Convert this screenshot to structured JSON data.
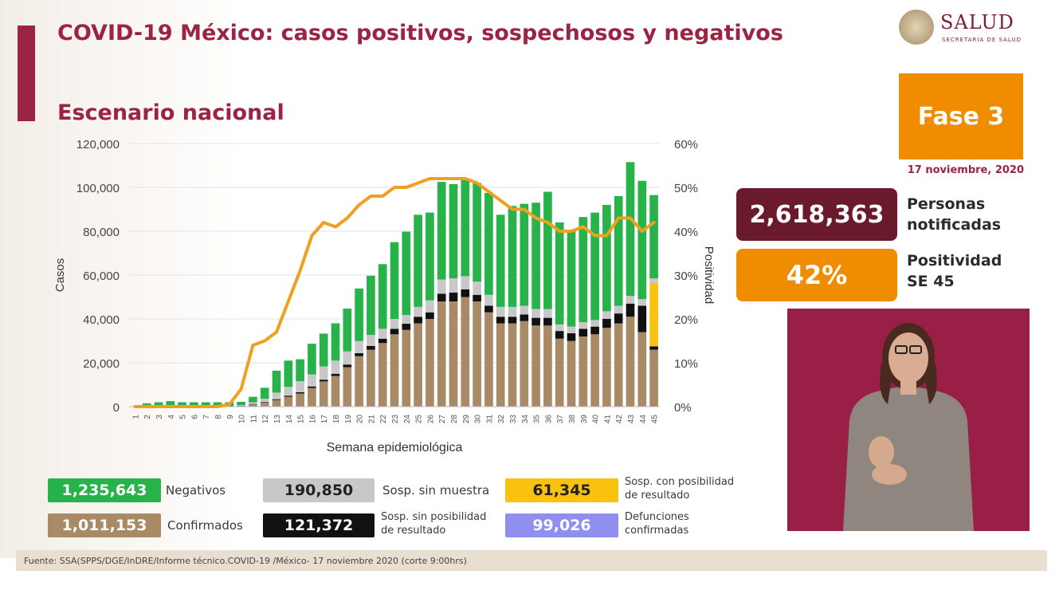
{
  "header": {
    "title": "COVID-19 México: casos positivos, sospechosos y negativos",
    "subtitle": "Escenario nacional"
  },
  "logo": {
    "text": "SALUD",
    "subtext": "SECRETARÍA DE SALUD"
  },
  "fase": {
    "label": "Fase 3",
    "date": "17 noviembre, 2020"
  },
  "stats": {
    "notificadas_value": "2,618,363",
    "notificadas_label": "Personas\nnotificadas",
    "positividad_value": "42%",
    "positividad_label": "Positividad\nSE 45"
  },
  "legend": {
    "negativos_value": "1,235,643",
    "negativos_label": "Negativos",
    "confirmados_value": "1,011,153",
    "confirmados_label": "Confirmados",
    "sin_muestra_value": "190,850",
    "sin_muestra_label": "Sosp. sin muestra",
    "sin_posibilidad_value": "121,372",
    "sin_posibilidad_label": "Sosp. sin posibilidad\nde resultado",
    "con_posibilidad_value": "61,345",
    "con_posibilidad_label": "Sosp. con posibilidad\nde resultado",
    "defunciones_value": "99,026",
    "defunciones_label": "Defunciones\nconfirmadas"
  },
  "footer": {
    "source": "Fuente: SSA(SPPS/DGE/InDRE/Informe técnico.COVID-19 /México- 17 noviembre 2020 (corte 9:00hrs)"
  },
  "colors": {
    "brand": "#9c2443",
    "confirmados": "#a88b66",
    "sin_posibilidad": "#111111",
    "sin_muestra": "#c8c8c8",
    "negativos": "#27b24a",
    "con_posibilidad": "#f8c20e",
    "defunciones": "#8f8ff0",
    "positividad": "#f0a020"
  },
  "chart_data": {
    "type": "bar",
    "xlabel": "Semana epidemiológica",
    "ylabel": "Casos",
    "y2label": "Positividad",
    "ylim": [
      0,
      120000
    ],
    "y2lim": [
      0,
      60
    ],
    "yticks": [
      "0",
      "20,000",
      "40,000",
      "60,000",
      "80,000",
      "100,000",
      "120,000"
    ],
    "y2ticks": [
      "0%",
      "10%",
      "20%",
      "30%",
      "40%",
      "50%",
      "60%"
    ],
    "categories": [
      "1",
      "2",
      "3",
      "4",
      "5",
      "6",
      "7",
      "8",
      "9",
      "10",
      "11",
      "12",
      "13",
      "14",
      "15",
      "16",
      "17",
      "18",
      "19",
      "20",
      "21",
      "22",
      "23",
      "24",
      "25",
      "26",
      "27",
      "28",
      "29",
      "30",
      "31",
      "32",
      "33",
      "34",
      "35",
      "36",
      "37",
      "38",
      "39",
      "40",
      "41",
      "42",
      "43",
      "44",
      "45"
    ],
    "stacked_series": [
      {
        "name": "Confirmados",
        "color_key": "confirmados",
        "values": [
          0,
          0,
          0,
          0,
          0,
          0,
          0,
          0,
          0,
          300,
          1000,
          1800,
          3000,
          4500,
          6000,
          8500,
          11500,
          14000,
          18000,
          23000,
          26000,
          29000,
          33000,
          35000,
          38000,
          40000,
          48000,
          48000,
          50000,
          48000,
          43000,
          38000,
          38000,
          39000,
          37000,
          37000,
          31000,
          30000,
          32000,
          33000,
          36000,
          38000,
          41000,
          34000,
          26000
        ]
      },
      {
        "name": "Sosp. sin posibilidad de resultado",
        "color_key": "sin_posibilidad",
        "values": [
          0,
          0,
          0,
          0,
          0,
          0,
          0,
          0,
          0,
          100,
          200,
          300,
          400,
          500,
          600,
          700,
          800,
          1000,
          1200,
          1400,
          1700,
          2000,
          2500,
          2800,
          3000,
          3000,
          3500,
          4000,
          3500,
          3000,
          3000,
          3000,
          3000,
          3000,
          3500,
          3500,
          3500,
          3500,
          3500,
          3500,
          4000,
          4500,
          6000,
          12000,
          1500
        ]
      },
      {
        "name": "Sosp. con posibilidad de resultado",
        "color_key": "con_posibilidad",
        "values": [
          0,
          0,
          0,
          0,
          0,
          0,
          0,
          0,
          0,
          0,
          0,
          0,
          0,
          0,
          0,
          0,
          0,
          0,
          0,
          0,
          0,
          0,
          0,
          0,
          0,
          0,
          0,
          0,
          0,
          0,
          0,
          0,
          0,
          0,
          0,
          0,
          0,
          0,
          0,
          0,
          0,
          0,
          0,
          0,
          29000
        ]
      },
      {
        "name": "Sosp. sin muestra",
        "color_key": "sin_muestra",
        "values": [
          0,
          0,
          0,
          0,
          0,
          0,
          0,
          0,
          0,
          300,
          800,
          1500,
          3000,
          4000,
          5000,
          5500,
          6000,
          6000,
          6000,
          5500,
          5000,
          4500,
          4500,
          4000,
          4500,
          5500,
          6500,
          6500,
          6000,
          6000,
          5000,
          4500,
          4500,
          4000,
          4000,
          4000,
          3000,
          3000,
          3000,
          3000,
          3500,
          3500,
          3500,
          3000,
          2000
        ]
      },
      {
        "name": "Negativos",
        "color_key": "negativos",
        "values": [
          0,
          1500,
          2000,
          2500,
          2000,
          2000,
          2000,
          2000,
          2000,
          1500,
          2500,
          5000,
          10000,
          12000,
          10000,
          14000,
          15000,
          17000,
          19500,
          24000,
          27000,
          29500,
          35000,
          38000,
          42000,
          40000,
          44500,
          43000,
          44500,
          45000,
          46500,
          42000,
          46000,
          46500,
          48500,
          53500,
          46500,
          43500,
          48000,
          49000,
          48500,
          50000,
          61000,
          54000,
          38000
        ]
      }
    ],
    "line_series": {
      "name": "Positividad",
      "values": [
        0,
        0,
        0,
        0,
        0,
        0,
        0,
        0,
        0.5,
        4,
        14,
        15,
        17,
        24,
        31,
        39,
        42,
        41,
        43,
        46,
        48,
        48,
        50,
        50,
        51,
        52,
        52,
        52,
        52,
        51,
        49,
        47,
        45,
        45,
        43,
        42,
        40,
        40,
        41,
        39,
        39,
        43,
        43,
        40,
        42
      ]
    }
  }
}
